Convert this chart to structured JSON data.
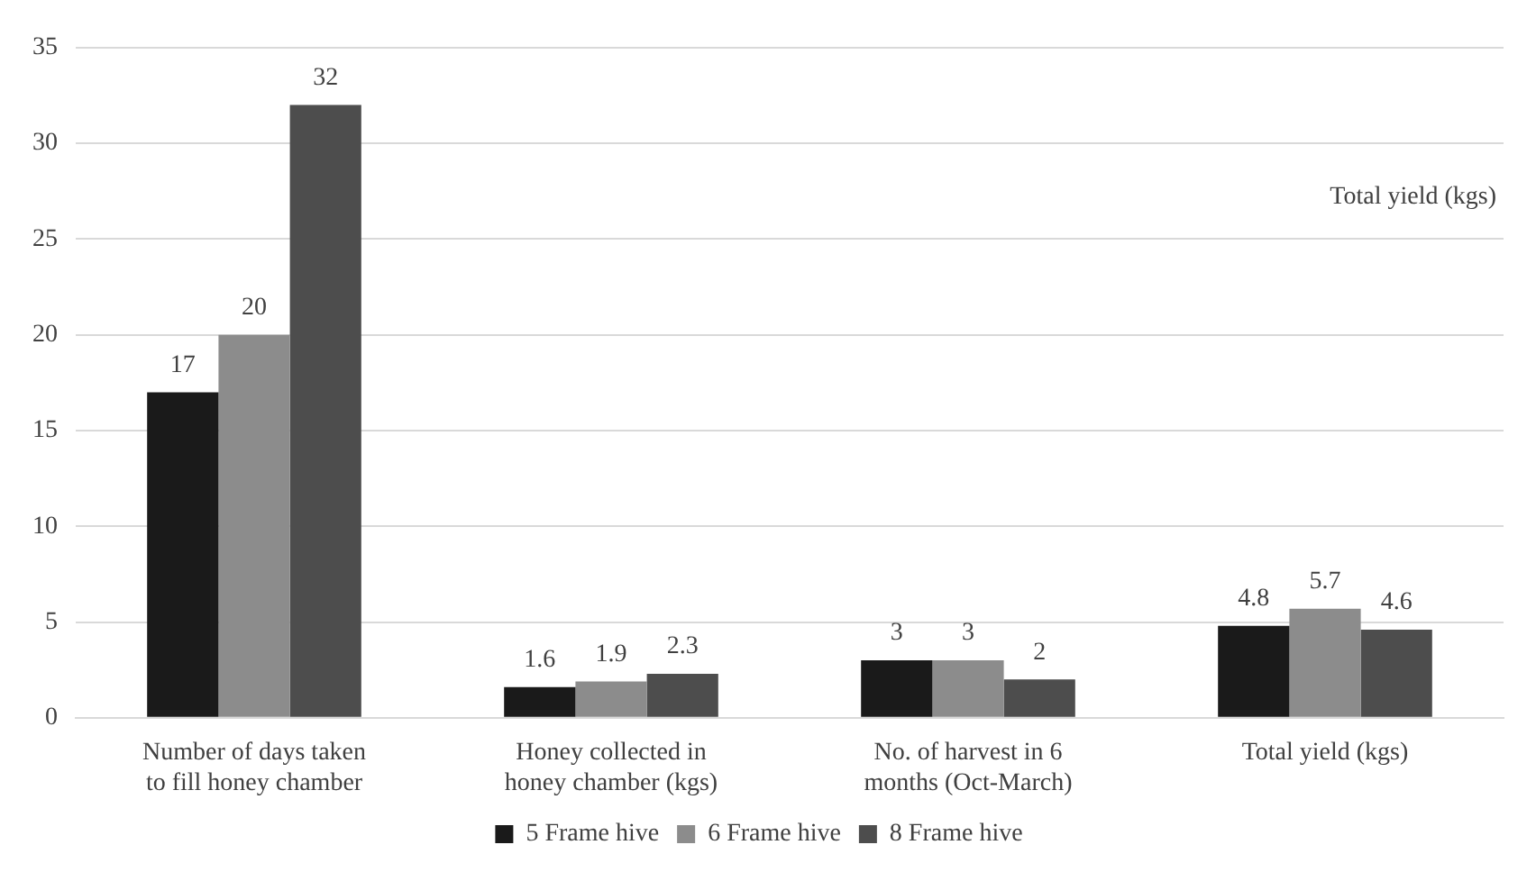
{
  "chart_data": {
    "type": "bar",
    "categories": [
      "Number of days taken to fill honey chamber",
      "Honey collected in honey chamber (kgs)",
      "No. of harvest in 6 months (Oct-March)",
      "Total yield (kgs)"
    ],
    "series": [
      {
        "name": "5 Frame hive",
        "color": "#1a1a1a",
        "values": [
          17,
          1.6,
          3,
          4.8
        ]
      },
      {
        "name": "6 Frame hive",
        "color": "#8c8c8c",
        "values": [
          20,
          1.9,
          3,
          5.7
        ]
      },
      {
        "name": "8 Frame hive",
        "color": "#4d4d4d",
        "values": [
          32,
          2.3,
          2,
          4.6
        ]
      }
    ],
    "ylim": [
      0,
      35
    ],
    "yticks": [
      0,
      5,
      10,
      15,
      20,
      25,
      30,
      35
    ],
    "grid": "y",
    "legend": "bottom",
    "data_labels": true,
    "annotations": [
      "Total yield (kgs)"
    ]
  }
}
